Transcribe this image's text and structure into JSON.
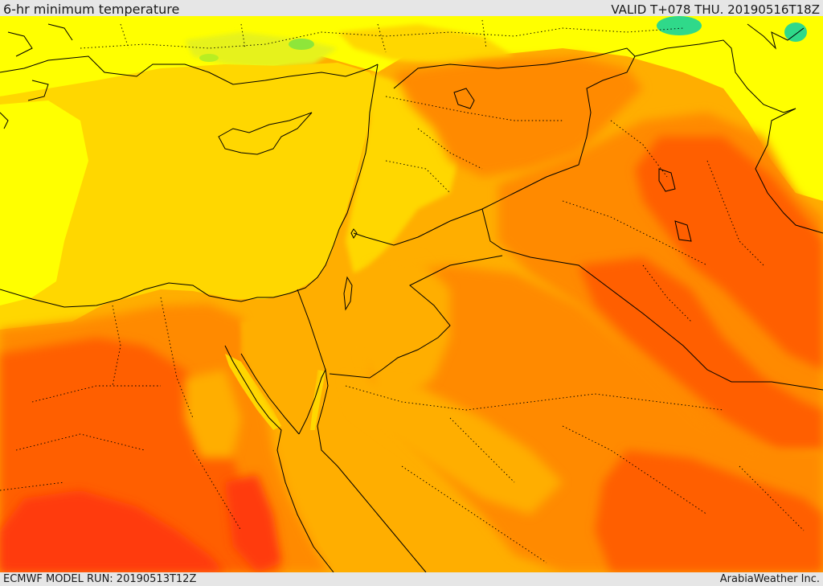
{
  "header": {
    "title": "6-hr minimum temperature",
    "valid": "VALID T+078 THU. 20190516T18Z"
  },
  "footer": {
    "model_run": "ECMWF MODEL RUN: 20190513T12Z",
    "credit": "ArabiaWeather Inc."
  },
  "map": {
    "field": "6-hr minimum temperature",
    "colors": {
      "cool_green": "#2fd98a",
      "yellow_green": "#d8f010",
      "yellow": "#ffff00",
      "gold": "#ffd700",
      "amber": "#ffae00",
      "orange": "#ff8a00",
      "dark_orange": "#ff5f00",
      "red_orange": "#ff3a10",
      "coastline": "#000000",
      "border": "#000000"
    }
  }
}
